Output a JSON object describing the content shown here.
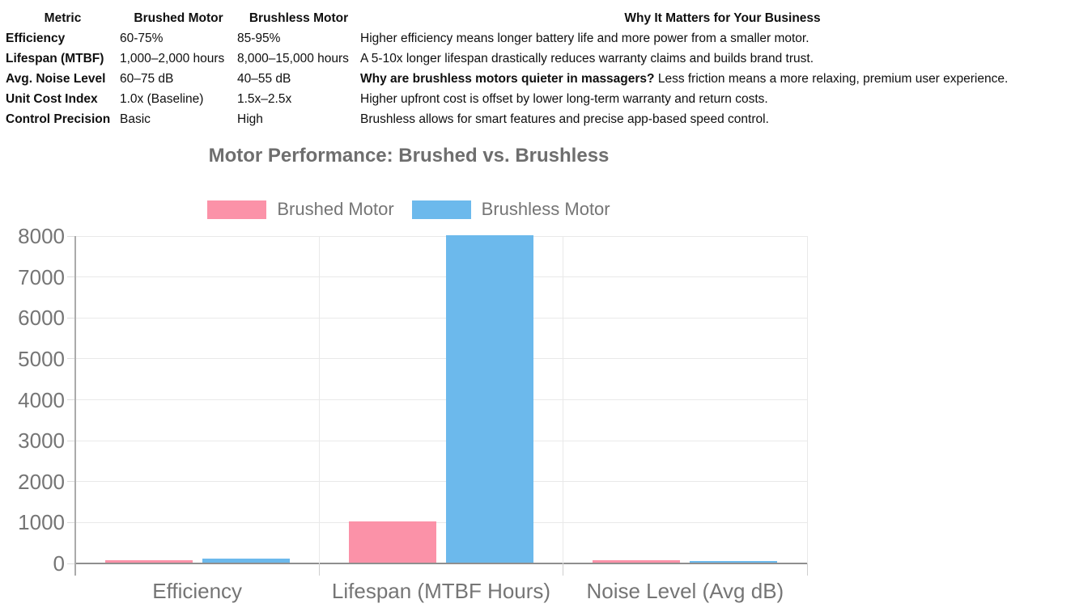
{
  "table": {
    "headers": [
      "Metric",
      "Brushed Motor",
      "Brushless Motor",
      "Why It Matters for Your Business"
    ],
    "rows": [
      {
        "metric": "Efficiency",
        "brushed": "60-75%",
        "brushless": "85-95%",
        "why_bold": "",
        "why": "Higher efficiency means longer battery life and more power from a smaller motor."
      },
      {
        "metric": "Lifespan (MTBF)",
        "brushed": "1,000–2,000 hours",
        "brushless": "8,000–15,000 hours",
        "why_bold": "",
        "why": "A 5-10x longer lifespan drastically reduces warranty claims and builds brand trust."
      },
      {
        "metric": "Avg. Noise Level",
        "brushed": "60–75 dB",
        "brushless": "40–55 dB",
        "why_bold": "Why are brushless motors quieter in massagers?",
        "why": " Less friction means a more relaxing, premium user experience."
      },
      {
        "metric": "Unit Cost Index",
        "brushed": "1.0x (Baseline)",
        "brushless": "1.5x–2.5x",
        "why_bold": "",
        "why": "Higher upfront cost is offset by lower long-term warranty and return costs."
      },
      {
        "metric": "Control Precision",
        "brushed": "Basic",
        "brushless": "High",
        "why_bold": "",
        "why": "Brushless allows for smart features and precise app-based speed control."
      }
    ]
  },
  "chart_data": {
    "type": "bar",
    "title": "Motor Performance: Brushed vs. Brushless",
    "categories": [
      "Efficiency",
      "Lifespan (MTBF Hours)",
      "Noise Level (Avg dB)"
    ],
    "series": [
      {
        "name": "Brushed Motor",
        "color": "#fb92a8",
        "values": [
          67.5,
          1000,
          67.5
        ]
      },
      {
        "name": "Brushless Motor",
        "color": "#6cb9ec",
        "values": [
          90,
          8000,
          47.5
        ]
      }
    ],
    "ylim": [
      0,
      8000
    ],
    "ytick_step": 1000,
    "xlabel": "",
    "ylabel": "",
    "legend_position": "top",
    "grid": true,
    "title_color": "#6e6e6e",
    "axis_text_color": "#757575"
  }
}
